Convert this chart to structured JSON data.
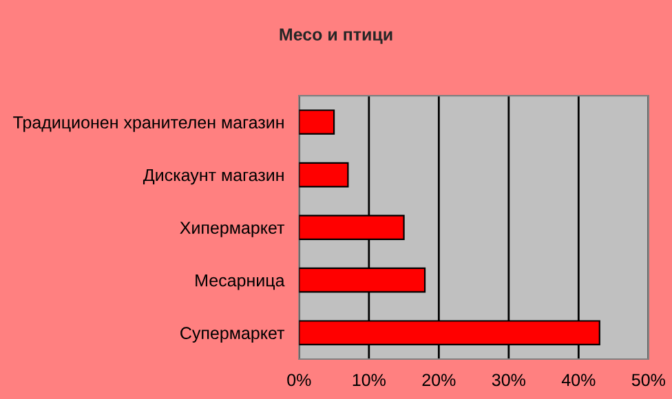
{
  "chart_data": {
    "type": "bar",
    "orientation": "horizontal",
    "title": "Месо и птици",
    "categories": [
      "Традиционен хранителен магазин",
      "Дискаунт магазин",
      "Хипермаркет",
      "Месарница",
      "Супермаркет"
    ],
    "values": [
      5,
      7,
      15,
      18,
      43
    ],
    "color": "#ff0000",
    "xlim": [
      0,
      50
    ],
    "xticks": [
      {
        "value": 0,
        "label": "0%"
      },
      {
        "value": 10,
        "label": "10%"
      },
      {
        "value": 20,
        "label": "20%"
      },
      {
        "value": 30,
        "label": "30%"
      },
      {
        "value": 40,
        "label": "40%"
      },
      {
        "value": 50,
        "label": "50%"
      }
    ],
    "grid": "x",
    "legend": false
  }
}
